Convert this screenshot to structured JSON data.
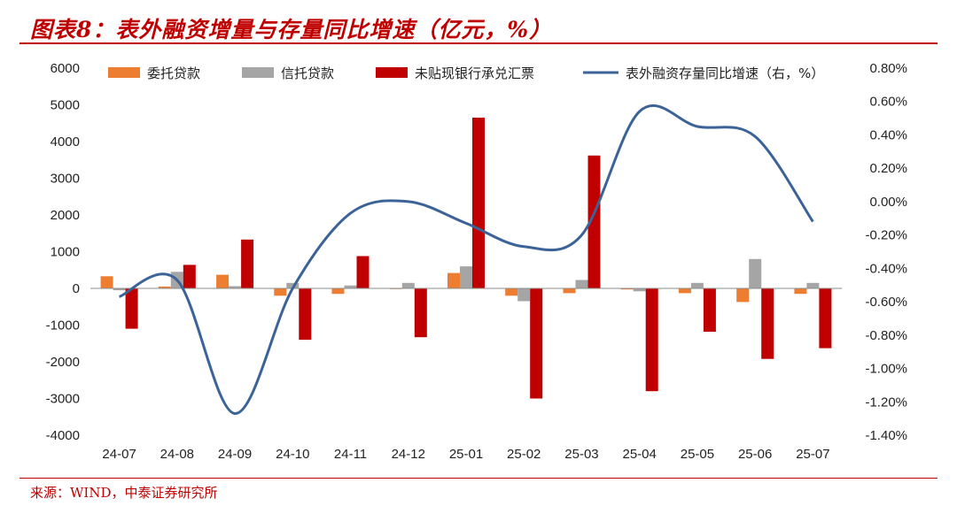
{
  "title": "图表8：表外融资增量与存量同比增速（亿元，%）",
  "source": "来源：WIND，中泰证券研究所",
  "colors": {
    "accent": "#c00000",
    "entrusted": "#ed7d31",
    "trust": "#a5a5a5",
    "bills": "#c00000",
    "line": "#3b6398"
  },
  "chart_data": {
    "type": "bar",
    "categories": [
      "24-07",
      "24-08",
      "24-09",
      "24-10",
      "24-11",
      "24-12",
      "25-01",
      "25-02",
      "25-03",
      "25-04",
      "25-05",
      "25-06",
      "25-07"
    ],
    "series": [
      {
        "name": "委托贷款",
        "type": "bar",
        "axis": "left",
        "values": [
          330,
          50,
          370,
          -200,
          -150,
          -20,
          420,
          -200,
          -130,
          -30,
          -130,
          -370,
          -150
        ]
      },
      {
        "name": "信托贷款",
        "type": "bar",
        "axis": "left",
        "values": [
          -50,
          450,
          60,
          150,
          80,
          150,
          600,
          -350,
          230,
          -80,
          150,
          800,
          150
        ]
      },
      {
        "name": "未贴现银行承兑汇票",
        "type": "bar",
        "axis": "left",
        "values": [
          -1100,
          640,
          1330,
          -1400,
          880,
          -1330,
          4650,
          -3000,
          3620,
          -2800,
          -1180,
          -1920,
          -1630
        ]
      },
      {
        "name": "表外融资存量同比增速（右，%）",
        "type": "line",
        "axis": "right",
        "values": [
          -0.57,
          -0.47,
          -1.27,
          -0.52,
          -0.07,
          0.0,
          -0.13,
          -0.27,
          -0.2,
          0.54,
          0.45,
          0.39,
          -0.12
        ]
      }
    ],
    "y_left": {
      "min": -4000,
      "max": 6000,
      "ticks": [
        "6000",
        "5000",
        "4000",
        "3000",
        "2000",
        "1000",
        "0",
        "-1000",
        "-2000",
        "-3000",
        "-4000"
      ]
    },
    "y_right": {
      "min": -1.4,
      "max": 0.8,
      "ticks": [
        "0.80%",
        "0.60%",
        "0.40%",
        "0.20%",
        "0.00%",
        "-0.20%",
        "-0.40%",
        "-0.60%",
        "-0.80%",
        "-1.00%",
        "-1.20%",
        "-1.40%"
      ]
    },
    "grid": false,
    "legend_position": "top"
  }
}
